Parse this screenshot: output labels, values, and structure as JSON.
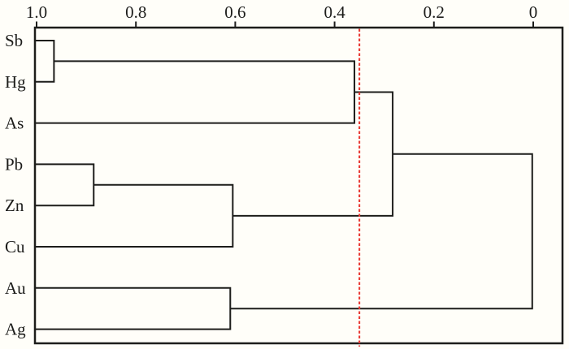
{
  "chart_data": {
    "type": "dendrogram",
    "orientation": "horizontal",
    "axis": {
      "position": "top",
      "range": [
        1.0,
        0
      ],
      "tick_labels": [
        "1.0",
        "0.8",
        "0.6",
        "0.4",
        "0.2",
        "0"
      ],
      "tick_values": [
        1.0,
        0.8,
        0.6,
        0.4,
        0.2,
        0
      ]
    },
    "leaves": [
      "Sb",
      "Hg",
      "As",
      "Pb",
      "Zn",
      "Cu",
      "Au",
      "Ag"
    ],
    "merges": [
      {
        "id": "m1",
        "children": [
          "Sb",
          "Hg"
        ],
        "distance": 0.965
      },
      {
        "id": "m2",
        "children": [
          "Pb",
          "Zn"
        ],
        "distance": 0.885
      },
      {
        "id": "m3",
        "children": [
          "m2",
          "Cu"
        ],
        "distance": 0.605
      },
      {
        "id": "m4",
        "children": [
          "Au",
          "Ag"
        ],
        "distance": 0.61
      },
      {
        "id": "m5",
        "children": [
          "m1",
          "As"
        ],
        "distance": 0.36
      },
      {
        "id": "m6",
        "children": [
          "m5",
          "m3"
        ],
        "distance": 0.283
      },
      {
        "id": "m7",
        "children": [
          "m6",
          "m4"
        ],
        "distance": 0.002
      }
    ],
    "threshold_line": {
      "value": 0.35,
      "style": "dashed",
      "color": "#e8352f"
    },
    "colors": {
      "line": "#1d1d1b",
      "background": "#fffef9"
    }
  }
}
